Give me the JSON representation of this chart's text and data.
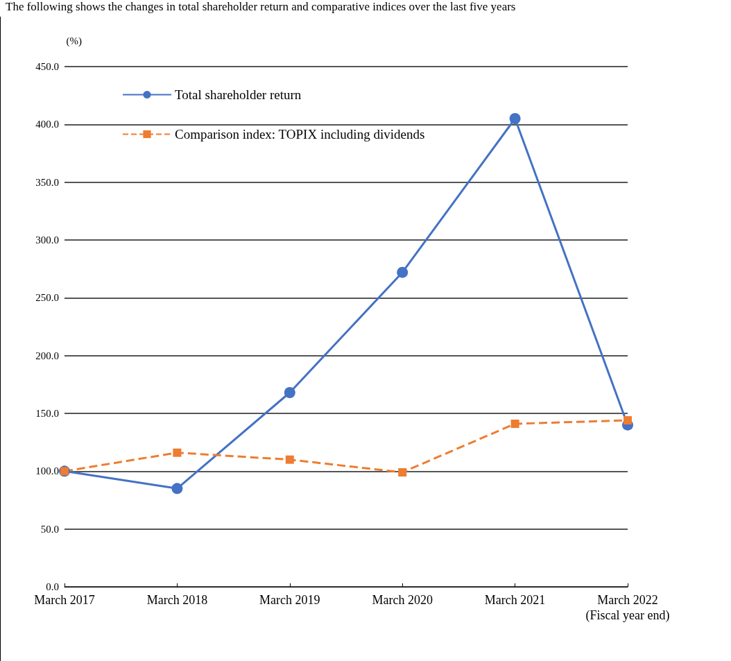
{
  "chart_data": {
    "type": "line",
    "title": "The following shows the changes in total shareholder return and comparative indices over the last five years",
    "ylabel": "(%)",
    "categories": [
      "March 2017",
      "March 2018",
      "March 2019",
      "March 2020",
      "March 2021",
      "March 2022\n(Fiscal year end)"
    ],
    "series": [
      {
        "name": "Total shareholder return",
        "color": "#4472c4",
        "marker": "circle",
        "line_style": "solid",
        "values": [
          100,
          85,
          168,
          272,
          405,
          140
        ]
      },
      {
        "name": "Comparison index: TOPIX including dividends",
        "color": "#ed7d31",
        "marker": "square",
        "line_style": "dashed",
        "values": [
          100,
          116,
          110,
          99,
          141,
          144
        ]
      }
    ],
    "ylim": [
      0,
      450
    ],
    "yticks": [
      {
        "value": 0,
        "label": "0.0"
      },
      {
        "value": 50,
        "label": "50.0"
      },
      {
        "value": 100,
        "label": "100.0"
      },
      {
        "value": 150,
        "label": "150.0"
      },
      {
        "value": 200,
        "label": "200.0"
      },
      {
        "value": 250,
        "label": "250.0"
      },
      {
        "value": 300,
        "label": "300.0"
      },
      {
        "value": 350,
        "label": "350.0"
      },
      {
        "value": 400,
        "label": "400.0"
      },
      {
        "value": 450,
        "label": "450.0"
      }
    ],
    "grid": "y",
    "legend": "top left"
  }
}
